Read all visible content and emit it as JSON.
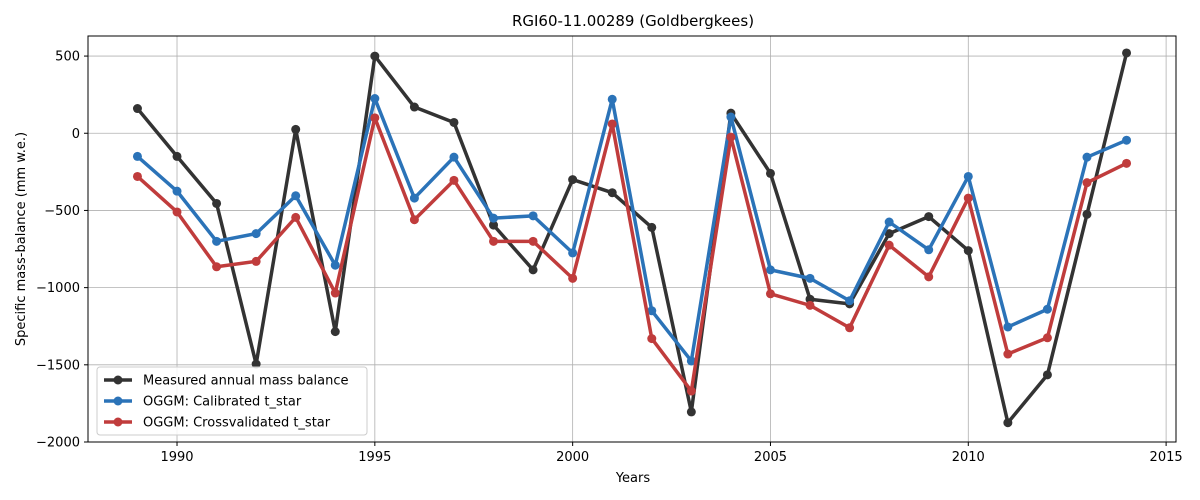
{
  "chart_data": {
    "type": "line",
    "title": "RGI60-11.00289 (Goldbergkees)",
    "xlabel": "Years",
    "ylabel": "Specific mass-balance (mm w.e.)",
    "xlim": [
      1987.75,
      2015.25
    ],
    "ylim": [
      -2000,
      630
    ],
    "xticks": [
      1990,
      1995,
      2000,
      2005,
      2010,
      2015
    ],
    "yticks": [
      -2000,
      -1500,
      -1000,
      -500,
      0,
      500
    ],
    "xtick_labels": [
      "1990",
      "1995",
      "2000",
      "2005",
      "2010",
      "2015"
    ],
    "ytick_labels": [
      "−2000",
      "−1500",
      "−1000",
      "−500",
      "0",
      "500"
    ],
    "grid": true,
    "legend_position": "lower-left",
    "x": [
      1989,
      1990,
      1991,
      1992,
      1993,
      1994,
      1995,
      1996,
      1997,
      1998,
      1999,
      2000,
      2001,
      2002,
      2003,
      2004,
      2005,
      2006,
      2007,
      2008,
      2009,
      2010,
      2011,
      2012,
      2013,
      2014
    ],
    "series": [
      {
        "name": "Measured annual mass balance",
        "color": "#333333",
        "values": [
          160,
          -150,
          -455,
          -1495,
          25,
          -1285,
          500,
          170,
          70,
          -595,
          -885,
          -300,
          -385,
          -610,
          -1805,
          130,
          -260,
          -1075,
          -1105,
          -650,
          -540,
          -760,
          -1875,
          -1565,
          -525,
          520
        ]
      },
      {
        "name": "OGGM: Calibrated t_star",
        "color": "#2b73b8",
        "values": [
          -150,
          -375,
          -700,
          -650,
          -405,
          -855,
          225,
          -420,
          -155,
          -550,
          -535,
          -775,
          220,
          -1150,
          -1475,
          105,
          -885,
          -940,
          -1085,
          -575,
          -755,
          -280,
          -1255,
          -1140,
          -155,
          -45
        ]
      },
      {
        "name": "OGGM: Crossvalidated t_star",
        "color": "#c03c3c",
        "values": [
          -280,
          -510,
          -865,
          -830,
          -545,
          -1035,
          100,
          -560,
          -305,
          -700,
          -700,
          -940,
          60,
          -1330,
          -1670,
          -25,
          -1040,
          -1115,
          -1260,
          -725,
          -930,
          -420,
          -1430,
          -1325,
          -320,
          -195
        ]
      }
    ]
  }
}
